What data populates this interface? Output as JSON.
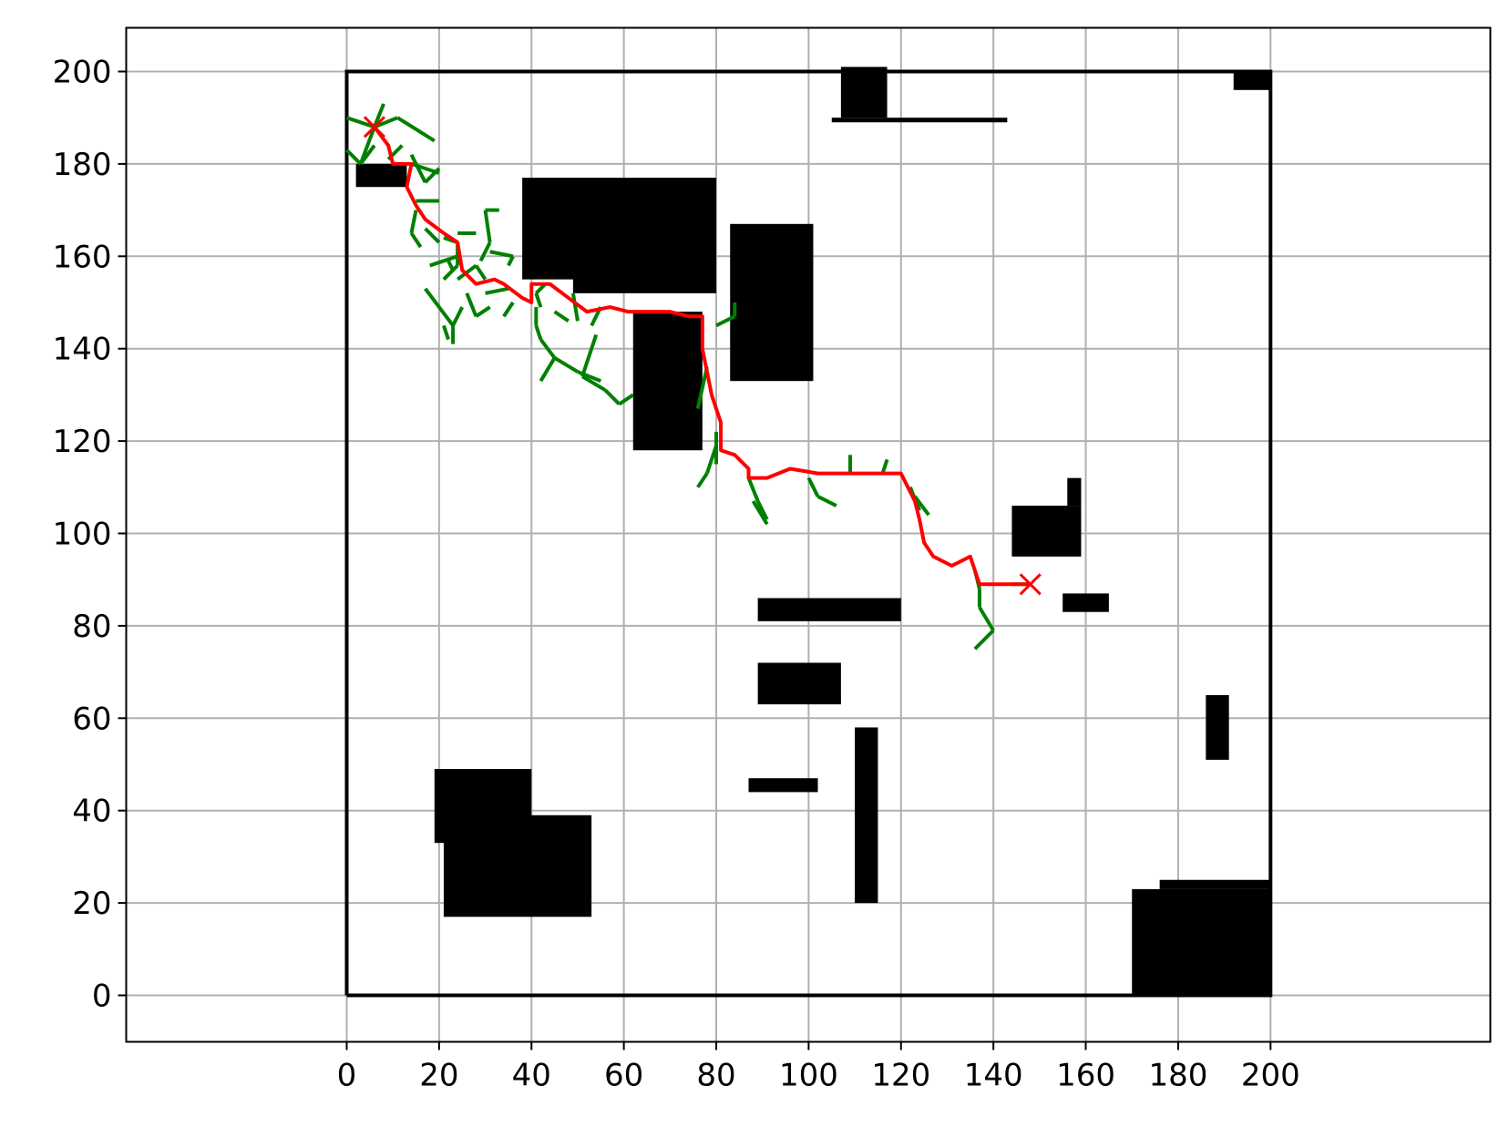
{
  "chart_data": {
    "type": "path-planning",
    "title": "",
    "xlabel": "",
    "ylabel": "",
    "xlim": [
      -10,
      215
    ],
    "ylim": [
      -10,
      210
    ],
    "xticks": [
      0,
      20,
      40,
      60,
      80,
      100,
      120,
      140,
      160,
      180,
      200
    ],
    "yticks": [
      0,
      20,
      40,
      60,
      80,
      100,
      120,
      140,
      160,
      180,
      200
    ],
    "grid": true,
    "colors": {
      "boundary": "#000000",
      "obstacle": "#000000",
      "tree": "#008000",
      "path": "#ff0000",
      "grid": "#b0b0b0"
    },
    "boundary": [
      [
        0,
        0
      ],
      [
        200,
        0
      ],
      [
        200,
        200
      ],
      [
        0,
        200
      ],
      [
        0,
        0
      ]
    ],
    "obstacles": [
      [
        107,
        190,
        10,
        11
      ],
      [
        105,
        189,
        38,
        1
      ],
      [
        192,
        196,
        8,
        4
      ],
      [
        2,
        175,
        11,
        5
      ],
      [
        38,
        155,
        12,
        22
      ],
      [
        49,
        152,
        31,
        25
      ],
      [
        83,
        133,
        18,
        34
      ],
      [
        62,
        118,
        15,
        30
      ],
      [
        144,
        95,
        15,
        11
      ],
      [
        156,
        106,
        3,
        6
      ],
      [
        155,
        83,
        10,
        4
      ],
      [
        89,
        81,
        31,
        5
      ],
      [
        89,
        63,
        18,
        9
      ],
      [
        87,
        44,
        15,
        3
      ],
      [
        110,
        20,
        5,
        38
      ],
      [
        186,
        51,
        5,
        14
      ],
      [
        19,
        33,
        21,
        16
      ],
      [
        21,
        17,
        32,
        22
      ],
      [
        170,
        0,
        30,
        23
      ],
      [
        176,
        23,
        24,
        2
      ]
    ],
    "tree_edges": [
      [
        [
          6,
          188
        ],
        [
          0,
          190
        ]
      ],
      [
        [
          6,
          188
        ],
        [
          3,
          180
        ]
      ],
      [
        [
          6,
          188
        ],
        [
          8,
          193
        ]
      ],
      [
        [
          6,
          188
        ],
        [
          11,
          190
        ]
      ],
      [
        [
          11,
          190
        ],
        [
          19,
          185
        ]
      ],
      [
        [
          3,
          180
        ],
        [
          0,
          183
        ]
      ],
      [
        [
          3,
          180
        ],
        [
          6,
          184
        ]
      ],
      [
        [
          9,
          181
        ],
        [
          12,
          184
        ]
      ],
      [
        [
          14,
          180
        ],
        [
          20,
          178
        ]
      ],
      [
        [
          14,
          182
        ],
        [
          17,
          176
        ]
      ],
      [
        [
          17,
          176
        ],
        [
          20,
          179
        ]
      ],
      [
        [
          15,
          172
        ],
        [
          20,
          172
        ]
      ],
      [
        [
          15,
          170
        ],
        [
          14,
          165
        ]
      ],
      [
        [
          14,
          165
        ],
        [
          16,
          162
        ]
      ],
      [
        [
          17,
          166
        ],
        [
          20,
          163
        ]
      ],
      [
        [
          21,
          164
        ],
        [
          24,
          163
        ]
      ],
      [
        [
          24,
          163
        ],
        [
          24,
          158
        ]
      ],
      [
        [
          24,
          165
        ],
        [
          28,
          165
        ]
      ],
      [
        [
          24,
          158
        ],
        [
          21,
          155
        ]
      ],
      [
        [
          24,
          160
        ],
        [
          18,
          158
        ]
      ],
      [
        [
          23,
          157
        ],
        [
          22,
          159
        ]
      ],
      [
        [
          24,
          155
        ],
        [
          28,
          158
        ]
      ],
      [
        [
          28,
          158
        ],
        [
          30,
          155
        ]
      ],
      [
        [
          29,
          159
        ],
        [
          31,
          163
        ]
      ],
      [
        [
          31,
          163
        ],
        [
          30,
          170
        ]
      ],
      [
        [
          30,
          170
        ],
        [
          33,
          170
        ]
      ],
      [
        [
          31,
          161
        ],
        [
          36,
          160
        ]
      ],
      [
        [
          36,
          160
        ],
        [
          35,
          158
        ]
      ],
      [
        [
          26,
          152
        ],
        [
          28,
          147
        ]
      ],
      [
        [
          28,
          147
        ],
        [
          31,
          149
        ]
      ],
      [
        [
          25,
          149
        ],
        [
          23,
          145
        ]
      ],
      [
        [
          23,
          145
        ],
        [
          23,
          141
        ]
      ],
      [
        [
          23,
          145
        ],
        [
          17,
          153
        ]
      ],
      [
        [
          22,
          142
        ],
        [
          21,
          145
        ]
      ],
      [
        [
          30,
          152
        ],
        [
          35,
          153
        ]
      ],
      [
        [
          36,
          150
        ],
        [
          34,
          147
        ]
      ],
      [
        [
          43,
          154
        ],
        [
          41,
          152
        ]
      ],
      [
        [
          41,
          152
        ],
        [
          42,
          149
        ]
      ],
      [
        [
          41,
          149
        ],
        [
          41,
          145
        ]
      ],
      [
        [
          41,
          145
        ],
        [
          42,
          142
        ]
      ],
      [
        [
          42,
          142
        ],
        [
          45,
          138
        ]
      ],
      [
        [
          45,
          138
        ],
        [
          42,
          133
        ]
      ],
      [
        [
          45,
          138
        ],
        [
          50,
          135
        ]
      ],
      [
        [
          50,
          135
        ],
        [
          55,
          133
        ]
      ],
      [
        [
          45,
          148
        ],
        [
          48,
          146
        ]
      ],
      [
        [
          54,
          143
        ],
        [
          51,
          134
        ]
      ],
      [
        [
          51,
          134
        ],
        [
          56,
          131
        ]
      ],
      [
        [
          56,
          131
        ],
        [
          59,
          128
        ]
      ],
      [
        [
          59,
          128
        ],
        [
          62,
          130
        ]
      ],
      [
        [
          49,
          152
        ],
        [
          50,
          146
        ]
      ],
      [
        [
          55,
          149
        ],
        [
          53,
          145
        ]
      ],
      [
        [
          80,
          145
        ],
        [
          84,
          147
        ]
      ],
      [
        [
          84,
          147
        ],
        [
          84,
          150
        ]
      ],
      [
        [
          76,
          127
        ],
        [
          78,
          136
        ]
      ],
      [
        [
          80,
          115
        ],
        [
          80,
          122
        ]
      ],
      [
        [
          80,
          119
        ],
        [
          78,
          113
        ]
      ],
      [
        [
          78,
          113
        ],
        [
          76,
          110
        ]
      ],
      [
        [
          87,
          112
        ],
        [
          89,
          107
        ]
      ],
      [
        [
          89,
          107
        ],
        [
          91,
          103
        ]
      ],
      [
        [
          91,
          102
        ],
        [
          88,
          107
        ]
      ],
      [
        [
          100,
          112
        ],
        [
          102,
          108
        ]
      ],
      [
        [
          102,
          108
        ],
        [
          106,
          106
        ]
      ],
      [
        [
          109,
          113
        ],
        [
          109,
          117
        ]
      ],
      [
        [
          116,
          113
        ],
        [
          117,
          116
        ]
      ],
      [
        [
          122,
          110
        ],
        [
          124,
          105
        ]
      ],
      [
        [
          123,
          108
        ],
        [
          126,
          104
        ]
      ],
      [
        [
          136,
          92
        ],
        [
          137,
          88
        ]
      ],
      [
        [
          137,
          88
        ],
        [
          137,
          84
        ]
      ],
      [
        [
          137,
          84
        ],
        [
          140,
          79
        ]
      ],
      [
        [
          140,
          79
        ],
        [
          136,
          75
        ]
      ],
      [
        [
          144,
          89
        ],
        [
          148,
          89
        ]
      ]
    ],
    "path": [
      [
        6,
        188
      ],
      [
        9,
        184
      ],
      [
        10,
        180
      ],
      [
        14,
        180
      ],
      [
        13,
        175
      ],
      [
        15,
        171
      ],
      [
        17,
        168
      ],
      [
        21,
        165
      ],
      [
        24,
        163
      ],
      [
        25,
        157
      ],
      [
        28,
        154
      ],
      [
        32,
        155
      ],
      [
        34,
        154
      ],
      [
        38,
        151
      ],
      [
        40,
        150
      ],
      [
        40,
        154
      ],
      [
        44,
        154
      ],
      [
        48,
        151
      ],
      [
        52,
        148
      ],
      [
        57,
        149
      ],
      [
        61,
        148
      ],
      [
        70,
        148
      ],
      [
        74,
        147
      ],
      [
        77,
        147
      ],
      [
        77,
        140
      ],
      [
        79,
        130
      ],
      [
        81,
        124
      ],
      [
        81,
        118
      ],
      [
        84,
        117
      ],
      [
        87,
        114
      ],
      [
        87,
        112
      ],
      [
        91,
        112
      ],
      [
        96,
        114
      ],
      [
        102,
        113
      ],
      [
        110,
        113
      ],
      [
        115,
        113
      ],
      [
        120,
        113
      ],
      [
        123,
        107
      ],
      [
        124,
        103
      ],
      [
        125,
        98
      ],
      [
        127,
        95
      ],
      [
        131,
        93
      ],
      [
        135,
        95
      ],
      [
        137,
        89
      ],
      [
        148,
        89
      ]
    ],
    "start": [
      6,
      188
    ],
    "goal": [
      148,
      89
    ]
  }
}
